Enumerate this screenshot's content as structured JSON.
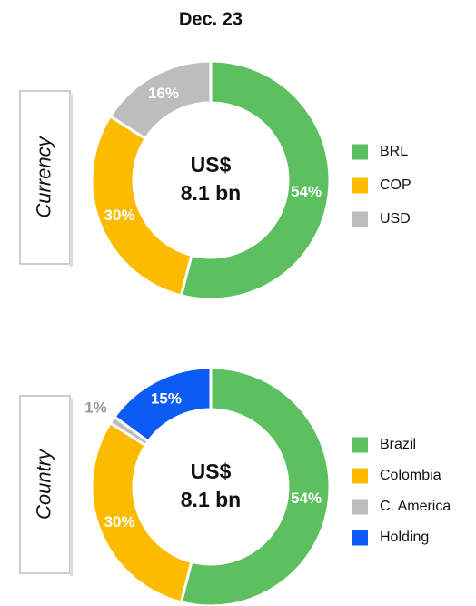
{
  "title": "Dec. 23",
  "chart_data": [
    {
      "type": "pie",
      "donut": true,
      "label": "Currency",
      "center_text": [
        "US$",
        "8.1 bn"
      ],
      "categories": [
        "BRL",
        "COP",
        "USD"
      ],
      "values": [
        54,
        30,
        16
      ],
      "value_labels": [
        "54%",
        "30%",
        "16%"
      ],
      "colors": [
        "#5cbf60",
        "#fdbb00",
        "#bdbdbd"
      ]
    },
    {
      "type": "pie",
      "donut": true,
      "label": "Country",
      "center_text": [
        "US$",
        "8.1 bn"
      ],
      "categories": [
        "Brazil",
        "Colombia",
        "C. America",
        "Holding"
      ],
      "values": [
        54,
        30,
        1,
        15
      ],
      "value_labels": [
        "54%",
        "30%",
        "1%",
        "15%"
      ],
      "colors": [
        "#5cbf60",
        "#fdbb00",
        "#bdbdbd",
        "#0a5cf5"
      ]
    }
  ]
}
